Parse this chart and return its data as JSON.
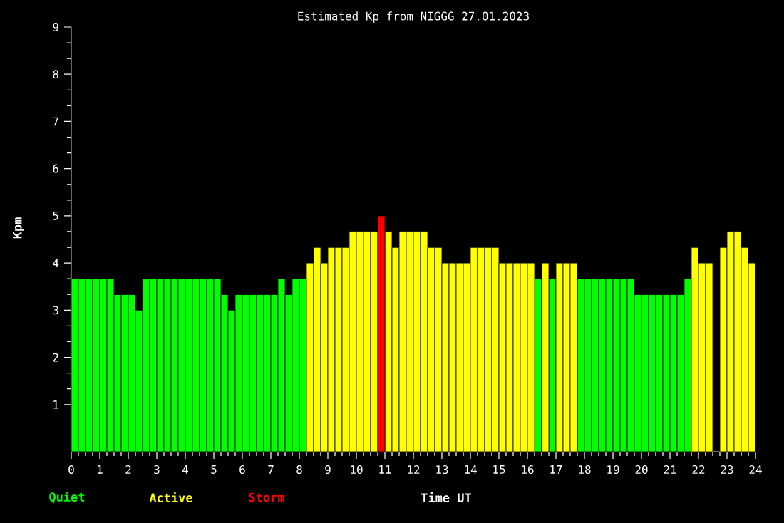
{
  "chart_data": {
    "type": "bar",
    "title": "Estimated Kp from NIGGG 27.01.2023",
    "xlabel": "Time UT",
    "ylabel": "Kpm",
    "x": [
      0.125,
      0.375,
      0.625,
      0.875,
      1.125,
      1.375,
      1.625,
      1.875,
      2.125,
      2.375,
      2.625,
      2.875,
      3.125,
      3.375,
      3.625,
      3.875,
      4.125,
      4.375,
      4.625,
      4.875,
      5.125,
      5.375,
      5.625,
      5.875,
      6.125,
      6.375,
      6.625,
      6.875,
      7.125,
      7.375,
      7.625,
      7.875,
      8.125,
      8.375,
      8.625,
      8.875,
      9.125,
      9.375,
      9.625,
      9.875,
      10.125,
      10.375,
      10.625,
      10.875,
      11.125,
      11.375,
      11.625,
      11.875,
      12.125,
      12.375,
      12.625,
      12.875,
      13.125,
      13.375,
      13.625,
      13.875,
      14.125,
      14.375,
      14.625,
      14.875,
      15.125,
      15.375,
      15.625,
      15.875,
      16.125,
      16.375,
      16.625,
      16.875,
      17.125,
      17.375,
      17.625,
      17.875,
      18.125,
      18.375,
      18.625,
      18.875,
      19.125,
      19.375,
      19.625,
      19.875,
      20.125,
      20.375,
      20.625,
      20.875,
      21.125,
      21.375,
      21.625,
      21.875,
      22.125,
      22.375,
      22.625,
      22.875,
      23.125,
      23.375,
      23.625,
      23.875
    ],
    "series": [
      {
        "name": "Quiet",
        "color": "#00ff00",
        "values": [
          3.67,
          3.67,
          3.67,
          3.67,
          3.67,
          3.67,
          3.33,
          3.33,
          3.33,
          3.0,
          3.67,
          3.67,
          3.67,
          3.67,
          3.67,
          3.67,
          3.67,
          3.67,
          3.67,
          3.67,
          3.67,
          3.33,
          3.0,
          3.33,
          3.33,
          3.33,
          3.33,
          3.33,
          3.33,
          3.67,
          3.33,
          3.67,
          3.67,
          null,
          null,
          null,
          null,
          null,
          null,
          null,
          null,
          null,
          null,
          null,
          null,
          null,
          null,
          null,
          null,
          null,
          null,
          null,
          null,
          null,
          null,
          null,
          null,
          null,
          null,
          null,
          null,
          null,
          null,
          null,
          null,
          3.67,
          null,
          3.67,
          null,
          null,
          null,
          3.67,
          3.67,
          3.67,
          3.67,
          3.67,
          3.67,
          3.67,
          3.67,
          3.33,
          3.33,
          3.33,
          3.33,
          3.33,
          3.33,
          3.33,
          3.67,
          null,
          null,
          null,
          null,
          null,
          null,
          null,
          null,
          null
        ]
      },
      {
        "name": "Active",
        "color": "#ffff00",
        "values": [
          null,
          null,
          null,
          null,
          null,
          null,
          null,
          null,
          null,
          null,
          null,
          null,
          null,
          null,
          null,
          null,
          null,
          null,
          null,
          null,
          null,
          null,
          null,
          null,
          null,
          null,
          null,
          null,
          null,
          null,
          null,
          null,
          null,
          4.0,
          4.33,
          4.0,
          4.33,
          4.33,
          4.33,
          4.67,
          4.67,
          4.67,
          4.67,
          null,
          4.67,
          4.33,
          4.67,
          4.67,
          4.67,
          4.67,
          4.33,
          4.33,
          4.0,
          4.0,
          4.0,
          4.0,
          4.33,
          4.33,
          4.33,
          4.33,
          4.0,
          4.0,
          4.0,
          4.0,
          4.0,
          null,
          4.0,
          null,
          4.0,
          4.0,
          4.0,
          null,
          null,
          null,
          null,
          null,
          null,
          null,
          null,
          null,
          null,
          null,
          null,
          null,
          null,
          null,
          null,
          4.33,
          4.0,
          4.0,
          null,
          4.33,
          4.67,
          4.67,
          4.33,
          4.0
        ]
      },
      {
        "name": "Storm",
        "color": "#ff0000",
        "values": [
          null,
          null,
          null,
          null,
          null,
          null,
          null,
          null,
          null,
          null,
          null,
          null,
          null,
          null,
          null,
          null,
          null,
          null,
          null,
          null,
          null,
          null,
          null,
          null,
          null,
          null,
          null,
          null,
          null,
          null,
          null,
          null,
          null,
          null,
          null,
          null,
          null,
          null,
          null,
          null,
          null,
          null,
          null,
          5.0,
          null,
          null,
          null,
          null,
          null,
          null,
          null,
          null,
          null,
          null,
          null,
          null,
          null,
          null,
          null,
          null,
          null,
          null,
          null,
          null,
          null,
          null,
          null,
          null,
          null,
          null,
          null,
          null,
          null,
          null,
          null,
          null,
          null,
          null,
          null,
          null,
          null,
          null,
          null,
          null,
          null,
          null,
          null,
          null,
          null,
          null,
          null,
          null,
          null,
          null,
          null,
          null
        ]
      }
    ],
    "xlim": [
      0,
      24
    ],
    "xticks": [
      0,
      1,
      2,
      3,
      4,
      5,
      6,
      7,
      8,
      9,
      10,
      11,
      12,
      13,
      14,
      15,
      16,
      17,
      18,
      19,
      20,
      21,
      22,
      23,
      24
    ],
    "ylim": [
      0,
      9
    ],
    "yticks": [
      1,
      2,
      3,
      4,
      5,
      6,
      7,
      8,
      9
    ],
    "legend": "bottom left"
  }
}
